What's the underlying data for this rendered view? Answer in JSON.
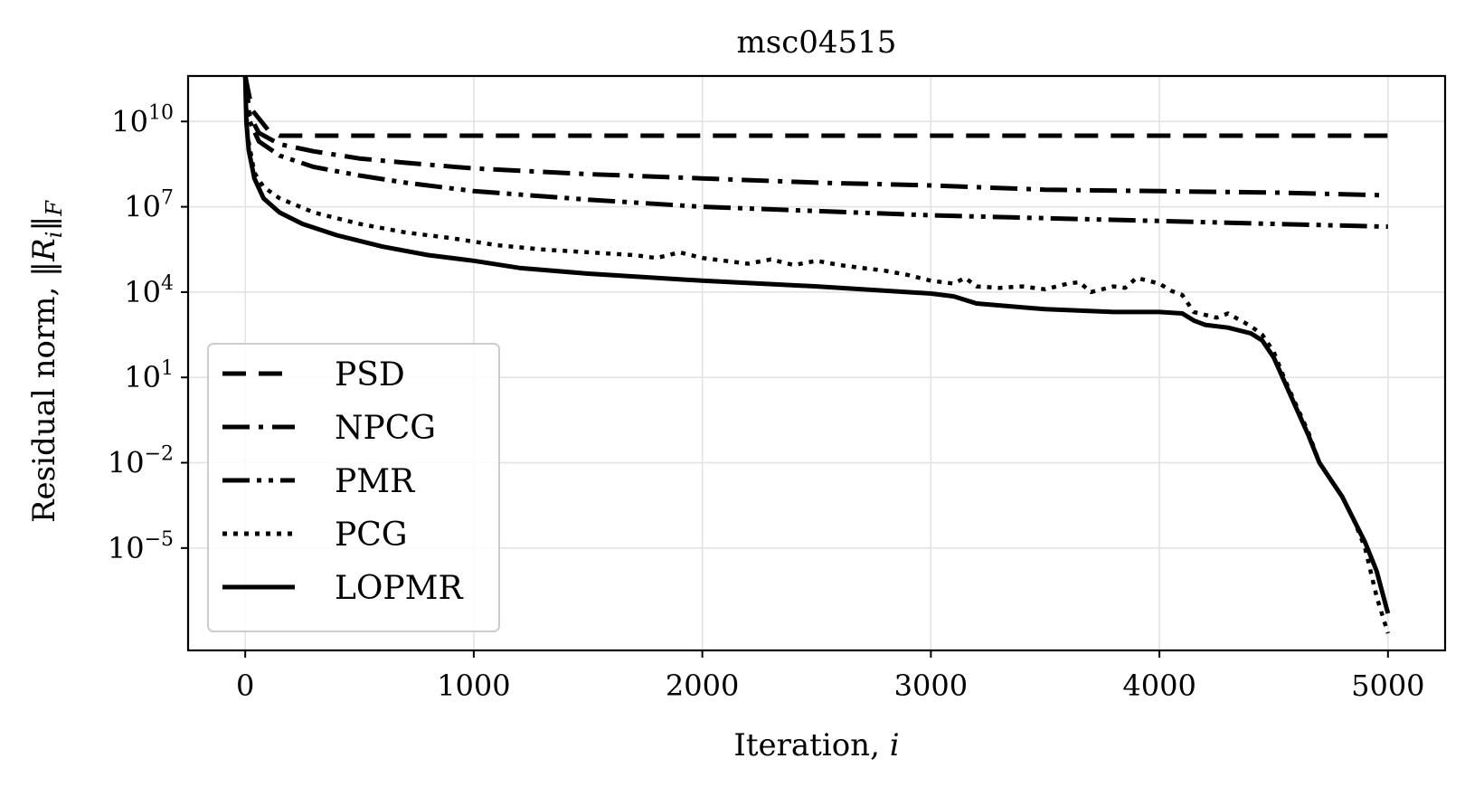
{
  "chart_data": {
    "type": "line",
    "title": "msc04515",
    "xlabel": "Iteration, i",
    "ylabel": "Residual norm, ‖R_i‖_F",
    "xlim": [
      -250,
      5250
    ],
    "ylim_log10": [
      -8.6,
      11.6
    ],
    "y_scale": "log",
    "grid": true,
    "legend_position": "lower-left",
    "x_ticks": [
      0,
      1000,
      2000,
      3000,
      4000,
      5000
    ],
    "x_tick_labels": [
      "0",
      "1000",
      "2000",
      "3000",
      "4000",
      "5000"
    ],
    "y_ticks_log10": [
      10,
      7,
      4,
      1,
      -2,
      -5
    ],
    "y_tick_labels": [
      {
        "base": "10",
        "exp": "10"
      },
      {
        "base": "10",
        "exp": "7"
      },
      {
        "base": "10",
        "exp": "4"
      },
      {
        "base": "10",
        "exp": "1"
      },
      {
        "base": "10",
        "exp": "−2"
      },
      {
        "base": "10",
        "exp": "−5"
      }
    ],
    "series": [
      {
        "name": "PSD",
        "dash": "dashed",
        "log10_values": [
          [
            0,
            11.6
          ],
          [
            30,
            10.4
          ],
          [
            100,
            9.7
          ],
          [
            150,
            9.5
          ],
          [
            300,
            9.5
          ],
          [
            1000,
            9.5
          ],
          [
            2000,
            9.5
          ],
          [
            3000,
            9.5
          ],
          [
            4000,
            9.5
          ],
          [
            5000,
            9.5
          ]
        ]
      },
      {
        "name": "NPCG",
        "dash": "dashdot",
        "log10_values": [
          [
            0,
            11.6
          ],
          [
            20,
            10.2
          ],
          [
            60,
            9.6
          ],
          [
            150,
            9.2
          ],
          [
            300,
            8.95
          ],
          [
            500,
            8.7
          ],
          [
            700,
            8.55
          ],
          [
            1000,
            8.35
          ],
          [
            1500,
            8.15
          ],
          [
            2000,
            8.0
          ],
          [
            2500,
            7.85
          ],
          [
            3000,
            7.75
          ],
          [
            3500,
            7.6
          ],
          [
            4000,
            7.55
          ],
          [
            4500,
            7.5
          ],
          [
            5000,
            7.4
          ]
        ]
      },
      {
        "name": "PMR",
        "dash": "dashdotdot",
        "log10_values": [
          [
            0,
            11.6
          ],
          [
            20,
            10.0
          ],
          [
            60,
            9.3
          ],
          [
            150,
            8.8
          ],
          [
            300,
            8.4
          ],
          [
            500,
            8.1
          ],
          [
            700,
            7.85
          ],
          [
            1000,
            7.55
          ],
          [
            1500,
            7.25
          ],
          [
            2000,
            7.0
          ],
          [
            2500,
            6.85
          ],
          [
            3000,
            6.7
          ],
          [
            3500,
            6.6
          ],
          [
            4000,
            6.5
          ],
          [
            4500,
            6.4
          ],
          [
            5000,
            6.3
          ]
        ]
      },
      {
        "name": "PCG",
        "dash": "dotted",
        "log10_values": [
          [
            0,
            11.6
          ],
          [
            10,
            9.5
          ],
          [
            40,
            8.2
          ],
          [
            80,
            7.7
          ],
          [
            150,
            7.3
          ],
          [
            300,
            6.8
          ],
          [
            500,
            6.4
          ],
          [
            700,
            6.1
          ],
          [
            900,
            5.9
          ],
          [
            1100,
            5.65
          ],
          [
            1300,
            5.5
          ],
          [
            1500,
            5.4
          ],
          [
            1700,
            5.3
          ],
          [
            1800,
            5.2
          ],
          [
            1900,
            5.4
          ],
          [
            2000,
            5.2
          ],
          [
            2100,
            5.1
          ],
          [
            2200,
            5.0
          ],
          [
            2300,
            5.15
          ],
          [
            2400,
            4.95
          ],
          [
            2500,
            5.1
          ],
          [
            2600,
            4.95
          ],
          [
            2700,
            4.85
          ],
          [
            2800,
            4.75
          ],
          [
            2900,
            4.6
          ],
          [
            3000,
            4.4
          ],
          [
            3100,
            4.3
          ],
          [
            3150,
            4.5
          ],
          [
            3200,
            4.2
          ],
          [
            3300,
            4.15
          ],
          [
            3400,
            4.2
          ],
          [
            3500,
            4.1
          ],
          [
            3600,
            4.3
          ],
          [
            3650,
            4.35
          ],
          [
            3700,
            4.0
          ],
          [
            3800,
            4.2
          ],
          [
            3850,
            4.15
          ],
          [
            3900,
            4.5
          ],
          [
            4000,
            4.3
          ],
          [
            4050,
            4.05
          ],
          [
            4100,
            3.9
          ],
          [
            4150,
            3.3
          ],
          [
            4250,
            3.1
          ],
          [
            4300,
            3.25
          ],
          [
            4400,
            2.8
          ],
          [
            4450,
            2.5
          ],
          [
            4500,
            1.9
          ],
          [
            4550,
            0.9
          ],
          [
            4600,
            0.0
          ],
          [
            4650,
            -0.9
          ],
          [
            4700,
            -2.0
          ],
          [
            4750,
            -2.6
          ],
          [
            4800,
            -3.2
          ],
          [
            4850,
            -4.0
          ],
          [
            4900,
            -5.0
          ],
          [
            4950,
            -6.7
          ],
          [
            5000,
            -8.0
          ]
        ]
      },
      {
        "name": "LOPMR",
        "dash": "solid",
        "log10_values": [
          [
            0,
            11.6
          ],
          [
            5,
            10.0
          ],
          [
            15,
            9.0
          ],
          [
            40,
            8.0
          ],
          [
            80,
            7.3
          ],
          [
            150,
            6.8
          ],
          [
            250,
            6.4
          ],
          [
            400,
            6.0
          ],
          [
            600,
            5.6
          ],
          [
            800,
            5.3
          ],
          [
            1000,
            5.1
          ],
          [
            1200,
            4.85
          ],
          [
            1500,
            4.65
          ],
          [
            2000,
            4.4
          ],
          [
            2500,
            4.2
          ],
          [
            3000,
            3.95
          ],
          [
            3100,
            3.85
          ],
          [
            3200,
            3.6
          ],
          [
            3500,
            3.4
          ],
          [
            3800,
            3.3
          ],
          [
            4000,
            3.3
          ],
          [
            4100,
            3.25
          ],
          [
            4150,
            3.0
          ],
          [
            4200,
            2.85
          ],
          [
            4300,
            2.75
          ],
          [
            4400,
            2.55
          ],
          [
            4450,
            2.3
          ],
          [
            4500,
            1.7
          ],
          [
            4550,
            0.8
          ],
          [
            4600,
            -0.1
          ],
          [
            4650,
            -1.0
          ],
          [
            4700,
            -2.0
          ],
          [
            4750,
            -2.6
          ],
          [
            4800,
            -3.2
          ],
          [
            4850,
            -4.0
          ],
          [
            4900,
            -4.8
          ],
          [
            4950,
            -5.8
          ],
          [
            5000,
            -7.3
          ]
        ]
      }
    ]
  }
}
